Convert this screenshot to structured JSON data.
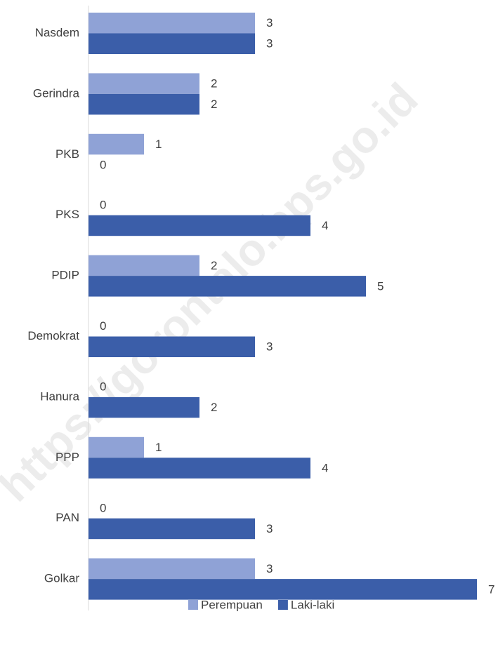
{
  "chart_data": {
    "type": "bar",
    "orientation": "horizontal",
    "categories": [
      "Nasdem",
      "Gerindra",
      "PKB",
      "PKS",
      "PDIP",
      "Demokrat",
      "Hanura",
      "PPP",
      "PAN",
      "Golkar"
    ],
    "series": [
      {
        "name": "Perempuan",
        "color": "#8fa2d6",
        "values": [
          3,
          2,
          1,
          0,
          2,
          0,
          0,
          1,
          0,
          3
        ]
      },
      {
        "name": "Laki-laki",
        "color": "#3b5ea9",
        "values": [
          3,
          2,
          0,
          4,
          5,
          3,
          2,
          4,
          3,
          7
        ]
      }
    ],
    "xlim": [
      0,
      7
    ],
    "legend": "bottom",
    "watermark": "https://gorontalo.bps.go.id"
  }
}
